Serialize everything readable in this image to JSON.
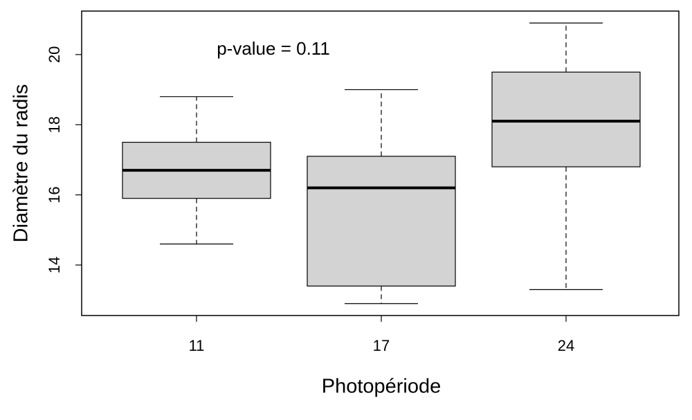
{
  "chart_data": {
    "type": "boxplot",
    "x_label": "Photopériode",
    "y_label": "Diamètre du radis",
    "annotation": "p-value = 0.11",
    "categories": [
      "11",
      "17",
      "24"
    ],
    "boxes": [
      {
        "min": 14.6,
        "q1": 15.9,
        "median": 16.7,
        "q3": 17.5,
        "max": 18.8
      },
      {
        "min": 12.9,
        "q1": 13.4,
        "median": 16.2,
        "q3": 17.1,
        "max": 19.0
      },
      {
        "min": 13.3,
        "q1": 16.8,
        "median": 18.1,
        "q3": 19.5,
        "max": 20.9
      }
    ],
    "color": "#d3d3d3",
    "ylim": [
      12.56,
      21.24
    ],
    "yticks": [
      14,
      16,
      18,
      20
    ]
  }
}
